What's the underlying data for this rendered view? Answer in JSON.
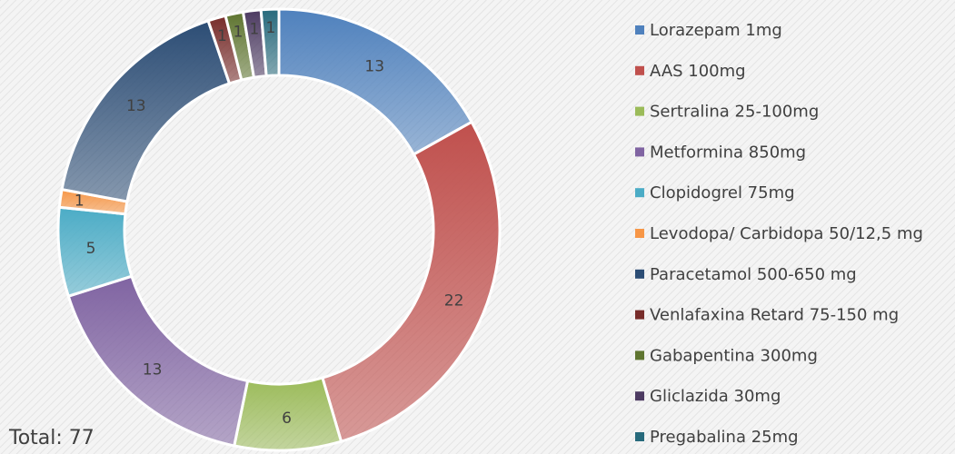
{
  "chart_data": {
    "type": "donut",
    "categories": [
      "Lorazepam 1mg",
      "AAS 100mg",
      "Sertralina 25-100mg",
      "Metformina 850mg",
      "Clopidogrel 75mg",
      "Levodopa/ Carbidopa 50/12,5 mg",
      "Paracetamol 500-650 mg",
      "Venlafaxina Retard 75-150 mg",
      "Gabapentina 300mg",
      "Gliclazida 30mg",
      "Pregabalina 25mg"
    ],
    "values": [
      13,
      22,
      6,
      13,
      5,
      1,
      13,
      1,
      1,
      1,
      1
    ],
    "colors": [
      "#4f81bd",
      "#c0504d",
      "#9bbb59",
      "#8064a2",
      "#4bacc6",
      "#f79646",
      "#2c4d75",
      "#772c2a",
      "#5f7530",
      "#4d3b62",
      "#276a7c"
    ],
    "total_label": "Total: 77",
    "legend": "right"
  }
}
